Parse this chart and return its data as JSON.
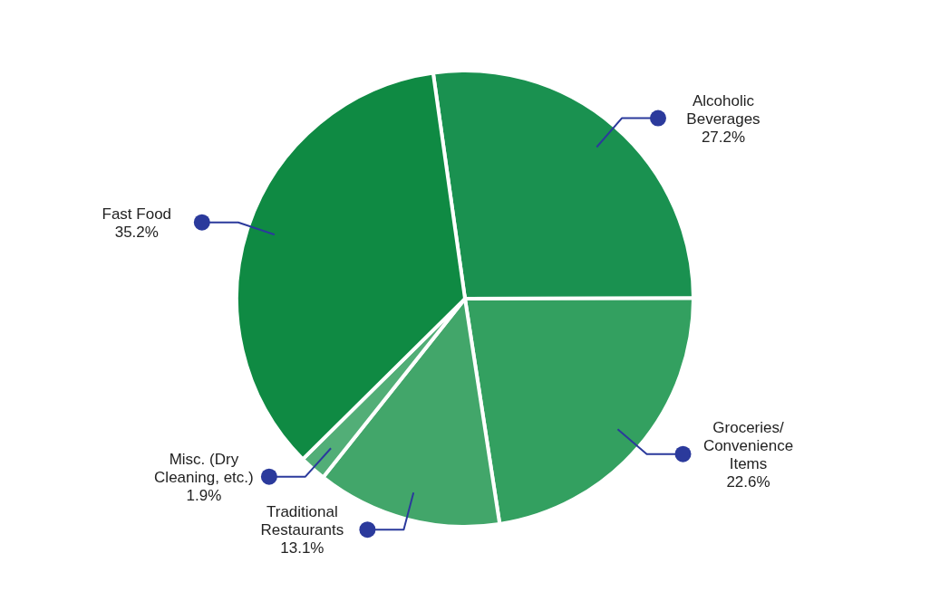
{
  "chart_data": {
    "type": "pie",
    "categories": [
      "Alcoholic Beverages",
      "Groceries/ Convenience Items",
      "Traditional Restaurants",
      "Misc. (Dry Cleaning, etc.)",
      "Fast Food"
    ],
    "values": [
      27.2,
      22.6,
      13.1,
      1.9,
      35.2
    ],
    "colors": [
      "#1a9150",
      "#33a060",
      "#42a66a",
      "#52ae77",
      "#0f8a43"
    ],
    "value_labels": [
      "27.2%",
      "22.6%",
      "13.1%",
      "1.9%",
      "35.2%"
    ]
  }
}
